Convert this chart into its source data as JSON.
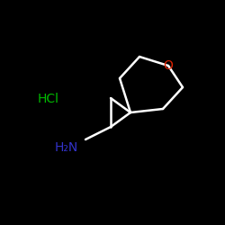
{
  "background_color": "#000000",
  "bond_color": "#ffffff",
  "hcl_color": "#00bb00",
  "nh2_color": "#3333cc",
  "o_color": "#dd2200",
  "bond_width": 1.8,
  "figsize": [
    2.5,
    2.5
  ],
  "dpi": 100,
  "hcl_text": "HCl",
  "nh2_text": "H₂N",
  "o_text": "O",
  "hcl_fontsize": 10,
  "nh2_fontsize": 10,
  "o_fontsize": 10
}
